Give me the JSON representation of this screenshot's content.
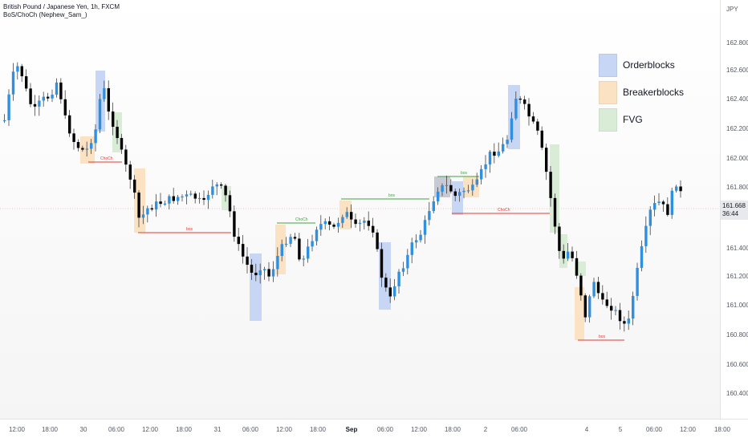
{
  "header": {
    "symbol_line": "British Pound / Japanese Yen, 1h, FXCM",
    "indicator_line": "BoS/ChoCh (Nephew_Sam_)"
  },
  "legend": {
    "items": [
      {
        "label": "Orderblocks",
        "color": "#c7d6f5"
      },
      {
        "label": "Breakerblocks",
        "color": "#fbe2c3"
      },
      {
        "label": "FVG",
        "color": "#d8ecd6"
      }
    ]
  },
  "price_axis": {
    "currency": "JPY",
    "labels": [
      "162.800",
      "162.600",
      "162.400",
      "162.200",
      "162.000",
      "161.800",
      "161.400",
      "161.200",
      "161.000",
      "160.800",
      "160.600",
      "160.400"
    ],
    "last_price": "161.668",
    "countdown": "36:44"
  },
  "time_axis": {
    "labels": [
      {
        "text": "12:00",
        "bold": false
      },
      {
        "text": "18:00",
        "bold": false
      },
      {
        "text": "30",
        "bold": false
      },
      {
        "text": "06:00",
        "bold": false
      },
      {
        "text": "12:00",
        "bold": false
      },
      {
        "text": "18:00",
        "bold": false
      },
      {
        "text": "31",
        "bold": false
      },
      {
        "text": "06:00",
        "bold": false
      },
      {
        "text": "12:00",
        "bold": false
      },
      {
        "text": "18:00",
        "bold": false
      },
      {
        "text": "Sep",
        "bold": true
      },
      {
        "text": "06:00",
        "bold": false
      },
      {
        "text": "12:00",
        "bold": false
      },
      {
        "text": "18:00",
        "bold": false
      },
      {
        "text": "2",
        "bold": false
      },
      {
        "text": "06:00",
        "bold": false
      },
      {
        "text": "4",
        "bold": false
      },
      {
        "text": "5",
        "bold": false
      },
      {
        "text": "06:00",
        "bold": false
      },
      {
        "text": "12:00",
        "bold": false
      },
      {
        "text": "18:00",
        "bold": false
      }
    ]
  },
  "annotations": {
    "choch_1": "ChoCh",
    "bos_1": "bos",
    "choch_2": "ChoCh",
    "bos_2": "bos",
    "bos_3": "bos",
    "choch_3": "ChoCh",
    "bos_4": "bos"
  },
  "colors": {
    "bull": "#2f8fe0",
    "bear": "#000000",
    "red_line": "#e53935",
    "green_line": "#43a047"
  }
}
